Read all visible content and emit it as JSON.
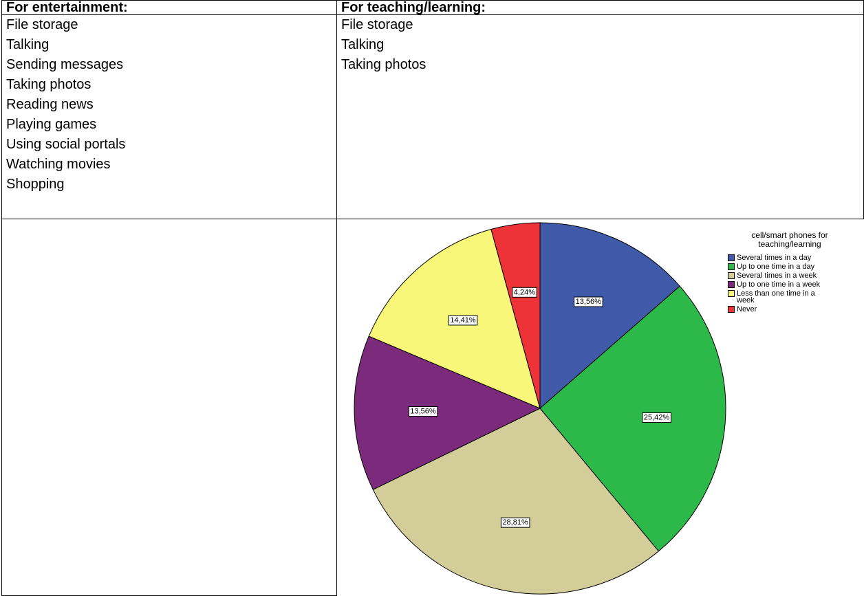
{
  "table": {
    "headers": [
      "For entertainment:",
      "For teaching/learning:"
    ],
    "columns": [
      [
        "File storage",
        "Talking",
        "Sending messages",
        "Taking photos",
        "Reading news",
        "Playing games",
        "Using social portals",
        "Watching movies",
        "Shopping"
      ],
      [
        "File storage",
        "Talking",
        "Taking photos"
      ]
    ]
  },
  "chart_data": {
    "type": "pie",
    "title": "cell/smart phones for teaching/learning",
    "categories": [
      "Several times in a day",
      "Up to one time in a day",
      "Several times in a week",
      "Up to one time in a week",
      "Less than one time in a week",
      "Never"
    ],
    "values": [
      13.56,
      25.42,
      28.81,
      13.56,
      14.41,
      4.24
    ],
    "value_labels": [
      "13,56%",
      "25,42%",
      "28,81%",
      "13,56%",
      "14,41%",
      "4,24%"
    ],
    "colors": [
      "#3f5aa8",
      "#2db84a",
      "#d3ce99",
      "#7b2a7c",
      "#f8f77a",
      "#ee3338"
    ]
  }
}
